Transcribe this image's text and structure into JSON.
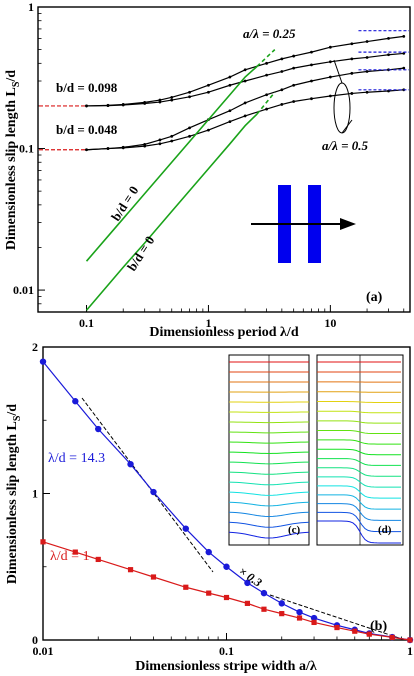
{
  "chart_data": [
    {
      "type": "line",
      "panel_label": "(a)",
      "xlabel": "Dimensionless period  λ/d",
      "ylabel": "Dimensionless slip length  L",
      "ylabel_sub": "S",
      "ylabel_tail": "/d",
      "x_scale": "log",
      "y_scale": "log",
      "xlim": [
        0.04,
        45
      ],
      "ylim": [
        0.007,
        1
      ],
      "x_ticks": [
        {
          "v": 0.1,
          "label": "0.1"
        },
        {
          "v": 1,
          "label": "1"
        },
        {
          "v": 10,
          "label": "10"
        }
      ],
      "y_ticks": [
        {
          "v": 0.01,
          "label": "0.01"
        },
        {
          "v": 0.1,
          "label": "0.1"
        },
        {
          "v": 1,
          "label": "1"
        }
      ],
      "series": [
        {
          "name": "b/d = 0.098",
          "color": "#000000",
          "x": [
            0.1,
            0.15,
            0.2,
            0.3,
            0.4,
            0.5,
            0.7,
            1,
            1.5,
            2,
            3,
            4,
            5,
            7,
            10,
            15,
            20,
            30,
            40
          ],
          "y": [
            0.2,
            0.202,
            0.205,
            0.212,
            0.22,
            0.23,
            0.25,
            0.28,
            0.32,
            0.36,
            0.4,
            0.43,
            0.45,
            0.48,
            0.52,
            0.55,
            0.57,
            0.6,
            0.62
          ]
        },
        {
          "color": "#000000",
          "x": [
            0.1,
            0.15,
            0.2,
            0.3,
            0.4,
            0.5,
            0.7,
            1,
            1.5,
            2,
            3,
            4,
            5,
            7,
            10,
            15,
            20,
            30,
            40
          ],
          "y": [
            0.2,
            0.201,
            0.203,
            0.208,
            0.213,
            0.22,
            0.232,
            0.25,
            0.28,
            0.3,
            0.33,
            0.35,
            0.37,
            0.39,
            0.41,
            0.43,
            0.44,
            0.46,
            0.47
          ]
        },
        {
          "name": "b/d = 0.048",
          "color": "#000000",
          "x": [
            0.1,
            0.15,
            0.2,
            0.3,
            0.4,
            0.5,
            0.7,
            1,
            1.5,
            2,
            3,
            4,
            5,
            7,
            10,
            15,
            20,
            30,
            40
          ],
          "y": [
            0.098,
            0.1,
            0.102,
            0.107,
            0.115,
            0.122,
            0.14,
            0.16,
            0.185,
            0.21,
            0.24,
            0.26,
            0.28,
            0.3,
            0.32,
            0.34,
            0.35,
            0.36,
            0.37
          ]
        },
        {
          "color": "#000000",
          "x": [
            0.1,
            0.15,
            0.2,
            0.3,
            0.4,
            0.5,
            0.7,
            1,
            1.5,
            2,
            3,
            4,
            5,
            7,
            10,
            15,
            20,
            30,
            40
          ],
          "y": [
            0.098,
            0.1,
            0.101,
            0.104,
            0.108,
            0.113,
            0.122,
            0.135,
            0.155,
            0.17,
            0.19,
            0.205,
            0.215,
            0.225,
            0.235,
            0.245,
            0.25,
            0.255,
            0.26
          ]
        },
        {
          "name": "b/d = 0",
          "color": "#1aa31a",
          "dashed_after": 2.5,
          "x": [
            0.1,
            0.2,
            0.3,
            0.5,
            1,
            1.5,
            2,
            2.5,
            3.5
          ],
          "y": [
            0.016,
            0.032,
            0.048,
            0.08,
            0.16,
            0.24,
            0.32,
            0.38,
            0.5
          ]
        },
        {
          "name": "b/d = 0",
          "color": "#1aa31a",
          "dashed_after": 2.5,
          "x": [
            0.1,
            0.2,
            0.3,
            0.5,
            1,
            1.5,
            2,
            2.5,
            3.5
          ],
          "y": [
            0.0072,
            0.0145,
            0.0215,
            0.036,
            0.072,
            0.108,
            0.145,
            0.175,
            0.25
          ]
        }
      ],
      "limits_left": [
        0.2,
        0.098
      ],
      "limits_right": [
        0.68,
        0.48,
        0.36,
        0.26
      ],
      "annotations": [
        "a/λ = 0.25",
        "a/λ = 0.5"
      ]
    },
    {
      "type": "line",
      "panel_label": "(b)",
      "xlabel": "Dimensionless stripe width  a/λ",
      "ylabel": "Dimensionless slip length  L",
      "ylabel_sub": "S",
      "ylabel_tail": "/d",
      "x_scale": "log",
      "xlim": [
        0.01,
        1
      ],
      "ylim": [
        0,
        2
      ],
      "x_ticks": [
        {
          "v": 0.01,
          "label": "0.01"
        },
        {
          "v": 0.1,
          "label": "0.1"
        },
        {
          "v": 1,
          "label": "1"
        }
      ],
      "y_ticks": [
        {
          "v": 0,
          "label": "0"
        },
        {
          "v": 1,
          "label": "1"
        },
        {
          "v": 2,
          "label": "2"
        }
      ],
      "series": [
        {
          "name": "λ/d = 14.3",
          "color": "#1a1ad9",
          "x": [
            0.01,
            0.015,
            0.02,
            0.03,
            0.04,
            0.06,
            0.08,
            0.1,
            0.13,
            0.16,
            0.2,
            0.25,
            0.3,
            0.4,
            0.5,
            0.6,
            0.8,
            1
          ],
          "y": [
            1.9,
            1.63,
            1.44,
            1.2,
            1.01,
            0.76,
            0.6,
            0.5,
            0.39,
            0.32,
            0.25,
            0.19,
            0.15,
            0.1,
            0.07,
            0.045,
            0.02,
            0
          ]
        },
        {
          "name": "λ/d = 1",
          "color": "#d91a1a",
          "x": [
            0.01,
            0.015,
            0.02,
            0.03,
            0.04,
            0.06,
            0.08,
            0.1,
            0.13,
            0.16,
            0.2,
            0.25,
            0.3,
            0.4,
            0.5,
            0.6,
            0.8,
            1
          ],
          "y": [
            0.67,
            0.6,
            0.55,
            0.48,
            0.43,
            0.36,
            0.32,
            0.29,
            0.25,
            0.21,
            0.18,
            0.15,
            0.12,
            0.085,
            0.06,
            0.04,
            0.018,
            0
          ]
        }
      ],
      "annotations": [
        "× 0.3"
      ],
      "insets": [
        "(c)",
        "(d)"
      ]
    }
  ]
}
